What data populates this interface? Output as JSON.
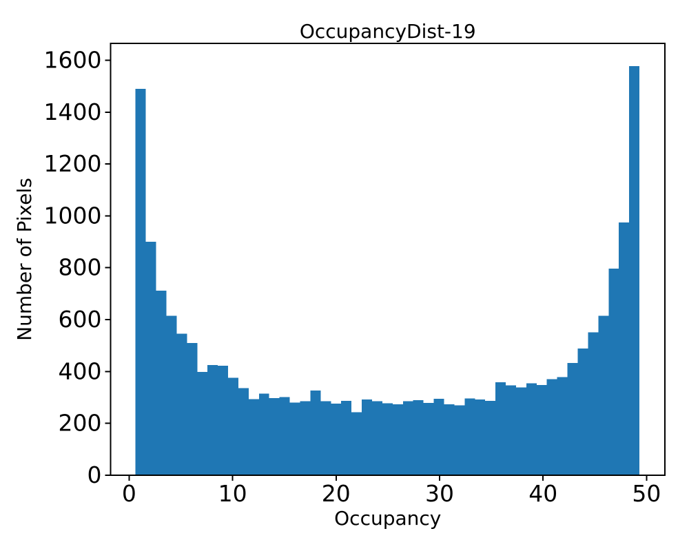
{
  "chart_data": {
    "type": "bar",
    "subtype": "histogram",
    "title": "OccupancyDist-19",
    "xlabel": "Occupancy",
    "ylabel": "Number of Pixels",
    "bar_color": "#1f77b4",
    "background_color": "#ffffff",
    "text_color": "#000000",
    "grid": false,
    "bin_start": 0.62,
    "bin_width": 0.9937,
    "values": [
      1490,
      900,
      712,
      615,
      546,
      510,
      398,
      425,
      422,
      376,
      336,
      293,
      315,
      298,
      301,
      280,
      285,
      327,
      285,
      276,
      287,
      243,
      292,
      286,
      278,
      273,
      286,
      289,
      279,
      295,
      274,
      270,
      296,
      292,
      287,
      358,
      347,
      339,
      354,
      348,
      370,
      378,
      433,
      488,
      551,
      615,
      797,
      974,
      1578
    ],
    "xticks": [
      0,
      10,
      20,
      30,
      40,
      50
    ],
    "yticks": [
      0,
      200,
      400,
      600,
      800,
      1000,
      1200,
      1400,
      1600
    ],
    "xlim": [
      -1.79,
      51.77
    ],
    "ylim": [
      0,
      1665
    ]
  }
}
